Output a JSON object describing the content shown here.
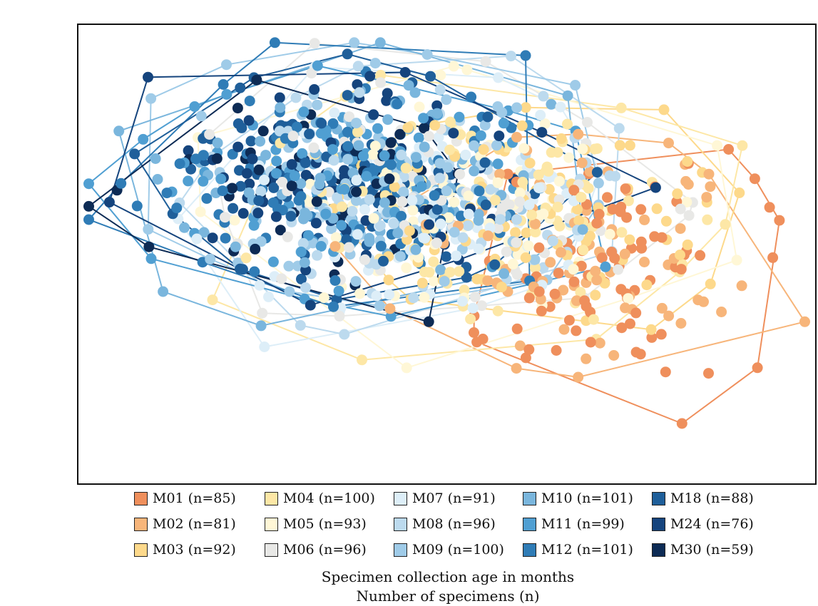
{
  "chart_data": {
    "type": "scatter",
    "title": "",
    "xlabel": "",
    "ylabel": "",
    "grid": false,
    "legend_position": "bottom",
    "caption_line1": "Specimen collection age in months",
    "caption_line2": "Number of specimens (n)",
    "series": [
      {
        "name": "M01 (n=85)",
        "n": 85,
        "color": "#ef8f5c",
        "cx": 0.72,
        "cy": 0.52,
        "rx": 0.22,
        "ry": 0.26
      },
      {
        "name": "M02 (n=81)",
        "n": 81,
        "color": "#f7b57a",
        "cx": 0.7,
        "cy": 0.5,
        "rx": 0.24,
        "ry": 0.28
      },
      {
        "name": "M03 (n=92)",
        "n": 92,
        "color": "#fdd98b",
        "cx": 0.6,
        "cy": 0.42,
        "rx": 0.28,
        "ry": 0.27
      },
      {
        "name": "M04 (n=100)",
        "n": 100,
        "color": "#fde7a6",
        "cx": 0.55,
        "cy": 0.4,
        "rx": 0.3,
        "ry": 0.27
      },
      {
        "name": "M05 (n=93)",
        "n": 93,
        "color": "#fff7d6",
        "cx": 0.5,
        "cy": 0.4,
        "rx": 0.3,
        "ry": 0.26
      },
      {
        "name": "M06 (n=96)",
        "n": 96,
        "color": "#e8e8e6",
        "cx": 0.48,
        "cy": 0.38,
        "rx": 0.3,
        "ry": 0.25
      },
      {
        "name": "M07 (n=91)",
        "n": 91,
        "color": "#ddeef8",
        "cx": 0.46,
        "cy": 0.38,
        "rx": 0.31,
        "ry": 0.25
      },
      {
        "name": "M08 (n=96)",
        "n": 96,
        "color": "#bcdaee",
        "cx": 0.44,
        "cy": 0.36,
        "rx": 0.31,
        "ry": 0.25
      },
      {
        "name": "M09 (n=100)",
        "n": 100,
        "color": "#9fcbe8",
        "cx": 0.42,
        "cy": 0.36,
        "rx": 0.3,
        "ry": 0.25
      },
      {
        "name": "M10 (n=101)",
        "n": 101,
        "color": "#7ab6dd",
        "cx": 0.4,
        "cy": 0.35,
        "rx": 0.3,
        "ry": 0.24
      },
      {
        "name": "M11 (n=99)",
        "n": 99,
        "color": "#509fd2",
        "cx": 0.38,
        "cy": 0.34,
        "rx": 0.3,
        "ry": 0.24
      },
      {
        "name": "M12 (n=101)",
        "n": 101,
        "color": "#2f7cb6",
        "cx": 0.37,
        "cy": 0.33,
        "rx": 0.29,
        "ry": 0.24
      },
      {
        "name": "M18 (n=88)",
        "n": 88,
        "color": "#1f5f9a",
        "cx": 0.36,
        "cy": 0.33,
        "rx": 0.28,
        "ry": 0.24
      },
      {
        "name": "M24 (n=76)",
        "n": 76,
        "color": "#15447d",
        "cx": 0.35,
        "cy": 0.32,
        "rx": 0.27,
        "ry": 0.23
      },
      {
        "name": "M30 (n=59)",
        "n": 59,
        "color": "#0d2b55",
        "cx": 0.34,
        "cy": 0.32,
        "rx": 0.25,
        "ry": 0.22
      }
    ]
  }
}
